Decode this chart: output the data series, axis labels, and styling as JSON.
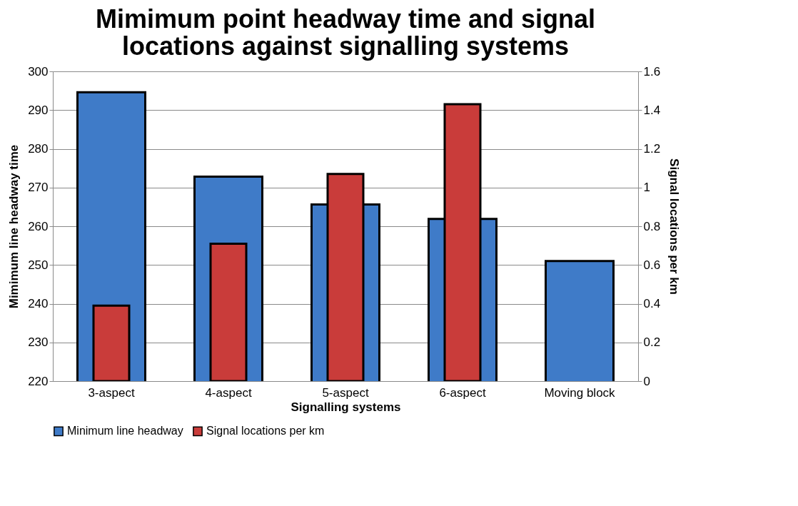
{
  "chart_data": {
    "type": "bar",
    "title": "Mimimum point headway time and signal locations against signalling systems",
    "xlabel": "Signalling systems",
    "ylabel": "Mimimum line headway time",
    "y2label": "Signal locations per km",
    "categories": [
      "3-aspect",
      "4-aspect",
      "5-aspect",
      "6-aspect",
      "Moving block"
    ],
    "series": [
      {
        "name": "Minimum line headway",
        "color": "#3f7bc8",
        "values": [
          294.6,
          272.8,
          265.6,
          261.9,
          251
        ]
      },
      {
        "name": "Signal locations per km",
        "color": "#c93c3a",
        "axis": "y2",
        "values": [
          0.39,
          0.71,
          1.07,
          1.43,
          null
        ]
      }
    ],
    "ylim": [
      220,
      300
    ],
    "yticks": [
      220,
      230,
      240,
      250,
      260,
      270,
      280,
      290,
      300
    ],
    "y2lim": [
      0,
      1.6
    ],
    "y2ticks": [
      0,
      0.2,
      0.4,
      0.6,
      0.8,
      1,
      1.2,
      1.4,
      1.6
    ],
    "grid": "y",
    "legend": "bottom"
  }
}
